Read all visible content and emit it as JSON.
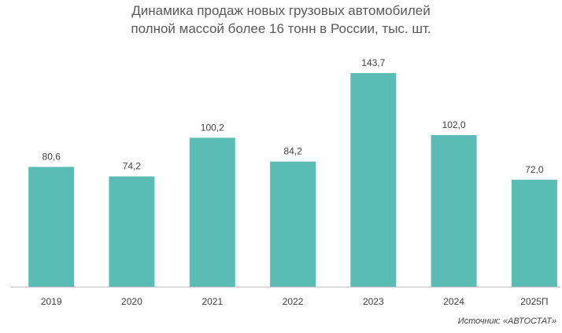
{
  "chart_data": {
    "type": "bar",
    "title_lines": [
      "Динамика продаж новых грузовых автомобилей",
      "полной массой более 16 тонн в России, тыс. шт."
    ],
    "categories": [
      "2019",
      "2020",
      "2021",
      "2022",
      "2023",
      "2024",
      "2025П"
    ],
    "values": [
      80.6,
      74.2,
      100.2,
      84.2,
      143.7,
      102.0,
      72.0
    ],
    "value_labels": [
      "80,6",
      "74,2",
      "100,2",
      "84,2",
      "143,7",
      "102,0",
      "72,0"
    ],
    "ylim": [
      0,
      150
    ],
    "grid": false,
    "legend": "none",
    "bar_color": "#5bbcb5",
    "axis_color": "#bfbfbf",
    "source": "Источник: «АВТОСТАТ»"
  }
}
